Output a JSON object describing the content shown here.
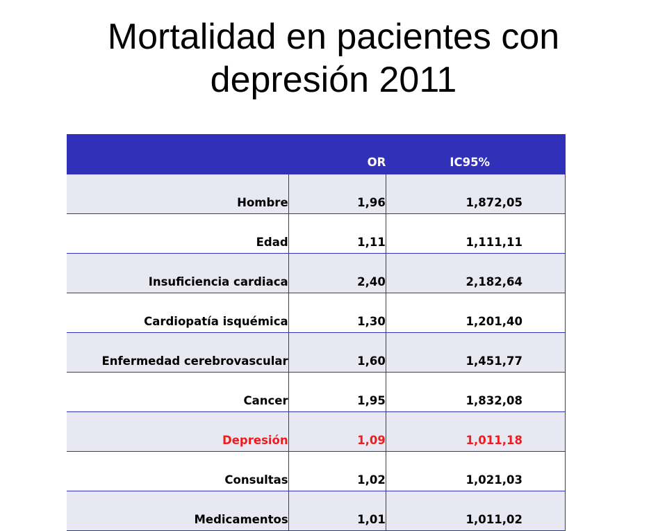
{
  "title": {
    "line1": "Mortalidad en pacientes con",
    "line2": "depresión 2011"
  },
  "table": {
    "headers": {
      "name": "",
      "or": "OR",
      "ic": "IC95%"
    },
    "rows": [
      {
        "name": "Hombre",
        "or": "1,96",
        "lo": "1,87",
        "hi": "2,05"
      },
      {
        "name": "Edad",
        "or": "1,11",
        "lo": "1,11",
        "hi": "1,11"
      },
      {
        "name": "Insuficiencia cardiaca",
        "or": "2,40",
        "lo": "2,18",
        "hi": "2,64"
      },
      {
        "name": "Cardiopatía isquémica",
        "or": "1,30",
        "lo": "1,20",
        "hi": "1,40"
      },
      {
        "name": "Enfermedad cerebrovascular",
        "or": "1,60",
        "lo": "1,45",
        "hi": "1,77"
      },
      {
        "name": "Cancer",
        "or": "1,95",
        "lo": "1,83",
        "hi": "2,08"
      },
      {
        "name": "Depresión",
        "or": "1,09",
        "lo": "1,01",
        "hi": "1,18"
      },
      {
        "name": "Consultas",
        "or": "1,02",
        "lo": "1,02",
        "hi": "1,03"
      },
      {
        "name": "Medicamentos",
        "or": "1,01",
        "lo": "1,01",
        "hi": "1,02"
      }
    ]
  },
  "colors": {
    "header_bg": "#3030b8",
    "highlight_text": "#ee1c1c",
    "row_alt_bg": "#e8e8f3"
  }
}
